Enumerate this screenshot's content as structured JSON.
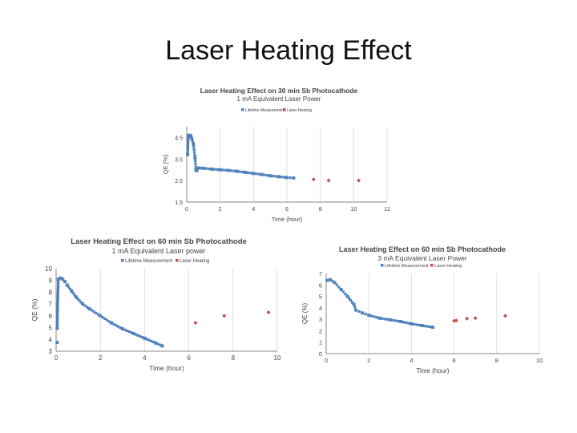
{
  "slide": {
    "title": "Laser Heating Effect"
  },
  "colors": {
    "series1": "#4f81bd",
    "series2": "#c0504d",
    "grid": "#d9d9d9",
    "axis": "#888888",
    "text": "#444444"
  },
  "chart_data": [
    {
      "type": "scatter",
      "title": "Laser Heating Effect on 30 min Sb Photocathode",
      "subtitle": "1 mA Equivalent Laser Power",
      "xlabel": "Time (hour)",
      "ylabel": "QE (%)",
      "xlim": [
        0,
        12
      ],
      "ylim": [
        1.5,
        5
      ],
      "xticks": [
        0,
        2,
        4,
        6,
        8,
        10,
        12
      ],
      "yticks": [
        1.5,
        2.5,
        3.5,
        4.5
      ],
      "ytick_labels": [
        "1.5",
        "2.5",
        "3.5",
        "4.5"
      ],
      "grid": "vertical",
      "legend": "top",
      "series": [
        {
          "name": "Lifetime Measurement",
          "points": [
            [
              0.05,
              3.7
            ],
            [
              0.1,
              4.6
            ],
            [
              0.2,
              4.6
            ],
            [
              0.25,
              4.55
            ],
            [
              0.3,
              4.45
            ],
            [
              0.4,
              4.2
            ],
            [
              0.5,
              3.55
            ],
            [
              0.55,
              3.0
            ],
            [
              0.6,
              2.96
            ],
            [
              0.7,
              3.08
            ],
            [
              1,
              3.07
            ],
            [
              1.5,
              3.03
            ],
            [
              2,
              3.0
            ],
            [
              2.5,
              2.97
            ],
            [
              3,
              2.93
            ],
            [
              3.5,
              2.88
            ],
            [
              4,
              2.83
            ],
            [
              4.5,
              2.78
            ],
            [
              5,
              2.72
            ],
            [
              5.5,
              2.68
            ],
            [
              6,
              2.64
            ],
            [
              6.4,
              2.62
            ]
          ]
        },
        {
          "name": "Laser Heating",
          "points": [
            [
              7.6,
              2.55
            ],
            [
              8.5,
              2.5
            ],
            [
              10.3,
              2.5
            ]
          ]
        }
      ]
    },
    {
      "type": "scatter",
      "title": "Laser Heating Effect on 60 min Sb Photocathode",
      "subtitle": "1 mA Equivalent Laser power",
      "xlabel": "Time (hour)",
      "ylabel": "QE (%)",
      "xlim": [
        0,
        10
      ],
      "ylim": [
        3,
        10
      ],
      "xticks": [
        0,
        2,
        4,
        6,
        8,
        10
      ],
      "yticks": [
        3,
        4,
        5,
        6,
        7,
        8,
        9,
        10
      ],
      "ytick_labels": [
        "3",
        "4",
        "5",
        "6",
        "7",
        "8",
        "9",
        "10"
      ],
      "grid": "vertical",
      "legend": "top",
      "series": [
        {
          "name": "Lifetime Measurement",
          "points": [
            [
              0.05,
              3.75
            ],
            [
              0.05,
              4.95
            ],
            [
              0.1,
              9.1
            ],
            [
              0.2,
              9.2
            ],
            [
              0.3,
              9.1
            ],
            [
              0.4,
              8.9
            ],
            [
              0.5,
              8.6
            ],
            [
              0.7,
              8.1
            ],
            [
              0.9,
              7.6
            ],
            [
              1.2,
              7.0
            ],
            [
              1.5,
              6.6
            ],
            [
              2,
              6.0
            ],
            [
              2.5,
              5.4
            ],
            [
              3,
              4.9
            ],
            [
              3.5,
              4.5
            ],
            [
              4,
              4.1
            ],
            [
              4.5,
              3.7
            ],
            [
              4.8,
              3.45
            ]
          ]
        },
        {
          "name": "Laser Heating",
          "points": [
            [
              6.3,
              5.4
            ],
            [
              7.6,
              6.0
            ],
            [
              9.6,
              6.3
            ]
          ]
        }
      ]
    },
    {
      "type": "scatter",
      "title": "Laser Heating Effect on 60 min Sb Photocathode",
      "subtitle": "3 mA Equivalent Laser Power",
      "xlabel": "Time (hour)",
      "ylabel": "QE (%)",
      "xlim": [
        0,
        10
      ],
      "ylim": [
        0,
        7
      ],
      "xticks": [
        0,
        2,
        4,
        6,
        8,
        10
      ],
      "yticks": [
        0,
        1,
        2,
        3,
        4,
        5,
        6,
        7
      ],
      "ytick_labels": [
        "0",
        "1",
        "2",
        "3",
        "4",
        "5",
        "6",
        "7"
      ],
      "grid": "vertical",
      "legend": "top",
      "series": [
        {
          "name": "Lifetime Measurement",
          "points": [
            [
              0.05,
              6.4
            ],
            [
              0.2,
              6.45
            ],
            [
              0.4,
              6.2
            ],
            [
              0.7,
              5.6
            ],
            [
              1,
              5.0
            ],
            [
              1.3,
              4.3
            ],
            [
              1.4,
              3.8
            ],
            [
              1.7,
              3.55
            ],
            [
              2,
              3.35
            ],
            [
              2.5,
              3.1
            ],
            [
              3,
              2.95
            ],
            [
              3.5,
              2.8
            ],
            [
              4,
              2.6
            ],
            [
              4.5,
              2.45
            ],
            [
              5,
              2.3
            ]
          ]
        },
        {
          "name": "Laser Heating",
          "points": [
            [
              6,
              2.85
            ],
            [
              6.1,
              2.9
            ],
            [
              6.6,
              3.05
            ],
            [
              7,
              3.1
            ],
            [
              8.4,
              3.3
            ]
          ]
        }
      ]
    }
  ]
}
